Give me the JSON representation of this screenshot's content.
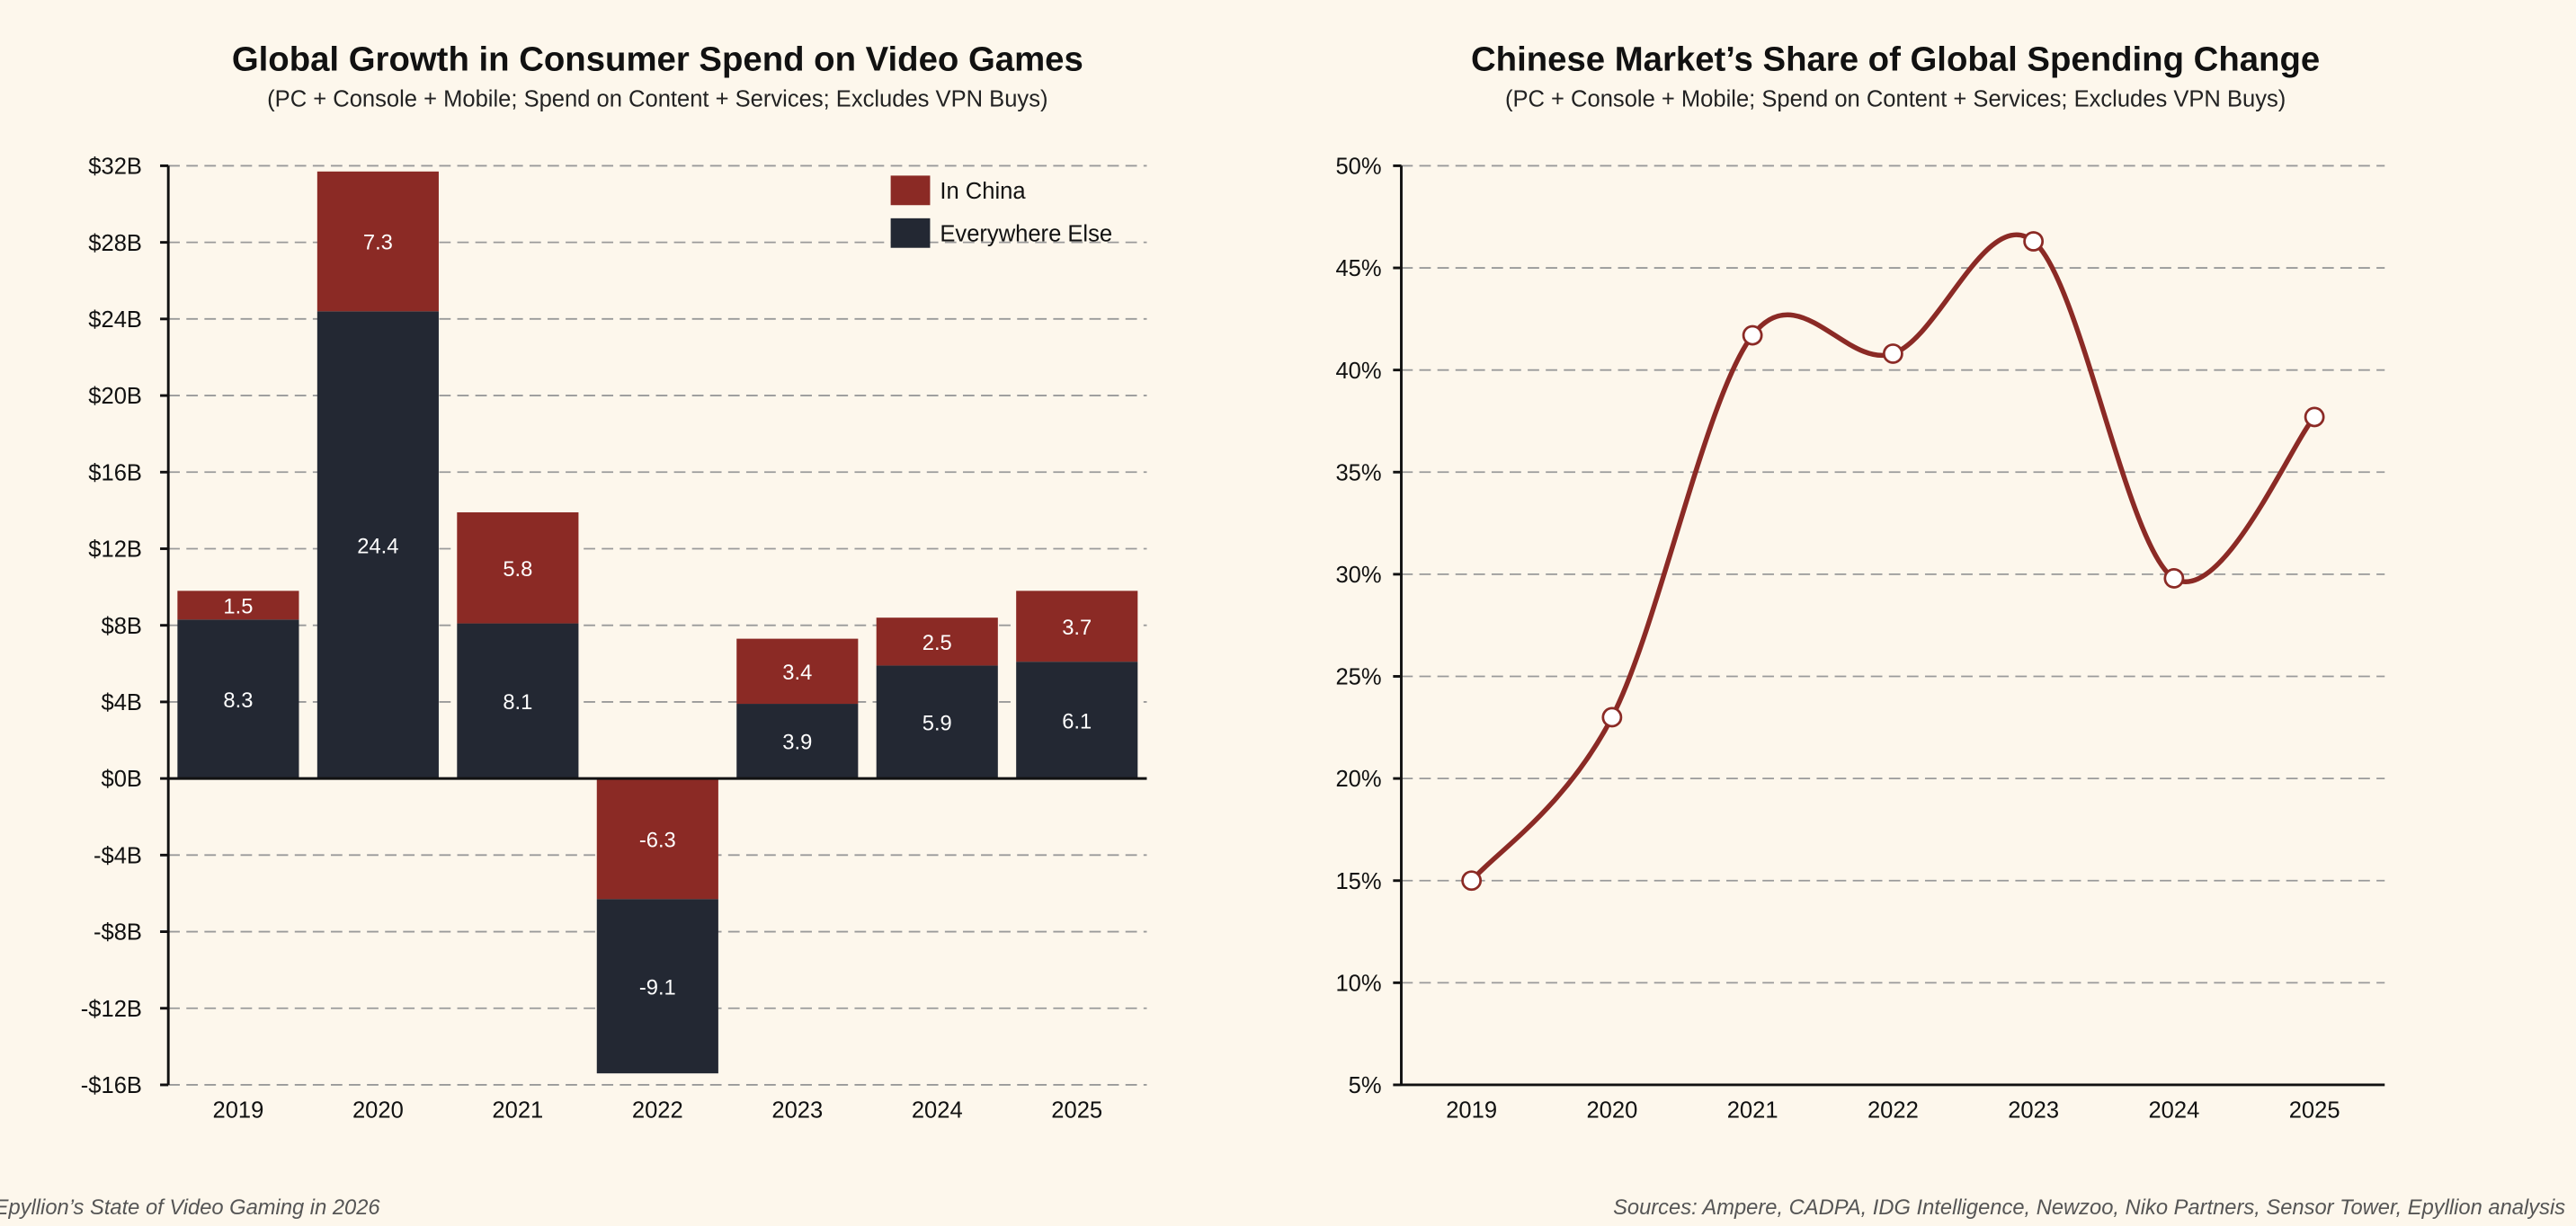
{
  "colors": {
    "background": "#fdf7ec",
    "china": "#8b2a25",
    "else": "#232833",
    "line": "#8b2a25"
  },
  "footer": {
    "left": "Epyllion’s State of Video Gaming in 2026",
    "right": "Sources: Ampere, CADPA, IDG Intelligence, Newzoo, Niko Partners, Sensor Tower, Epyllion analysis"
  },
  "chart_data": [
    {
      "type": "bar",
      "stacked": true,
      "title": "Global Growth in Consumer Spend on Video Games",
      "subtitle": "(PC + Console + Mobile; Spend on Content + Services; Excludes VPN Buys)",
      "categories": [
        "2019",
        "2020",
        "2021",
        "2022",
        "2023",
        "2024",
        "2025"
      ],
      "series": [
        {
          "name": "Everywhere Else",
          "values": [
            8.3,
            24.4,
            8.1,
            -9.1,
            3.9,
            5.9,
            6.1
          ]
        },
        {
          "name": "In China",
          "values": [
            1.5,
            7.3,
            5.8,
            -6.3,
            3.4,
            2.5,
            3.7
          ]
        }
      ],
      "ylim": [
        -16,
        32
      ],
      "yticks": [
        -16,
        -12,
        -8,
        -4,
        0,
        4,
        8,
        12,
        16,
        20,
        24,
        28,
        32
      ],
      "ytick_labels": [
        "-$16B",
        "-$12B",
        "-$8B",
        "-$4B",
        "$0B",
        "$4B",
        "$8B",
        "$12B",
        "$16B",
        "$20B",
        "$24B",
        "$28B",
        "$32B"
      ],
      "grid": true,
      "legend": "top-right",
      "data_labels": true
    },
    {
      "type": "line",
      "smooth": true,
      "markers": true,
      "title": "Chinese Market’s Share of Global Spending Change",
      "subtitle": "(PC + Console + Mobile; Spend on Content + Services; Excludes VPN Buys)",
      "categories": [
        "2019",
        "2020",
        "2021",
        "2022",
        "2023",
        "2024",
        "2025"
      ],
      "values": [
        15.0,
        23.0,
        41.7,
        40.8,
        46.3,
        29.8,
        37.7
      ],
      "ylim": [
        5,
        50
      ],
      "yticks": [
        5,
        10,
        15,
        20,
        25,
        30,
        35,
        40,
        45,
        50
      ],
      "ytick_labels": [
        "5%",
        "10%",
        "15%",
        "20%",
        "25%",
        "30%",
        "35%",
        "40%",
        "45%",
        "50%"
      ],
      "grid": true
    }
  ]
}
